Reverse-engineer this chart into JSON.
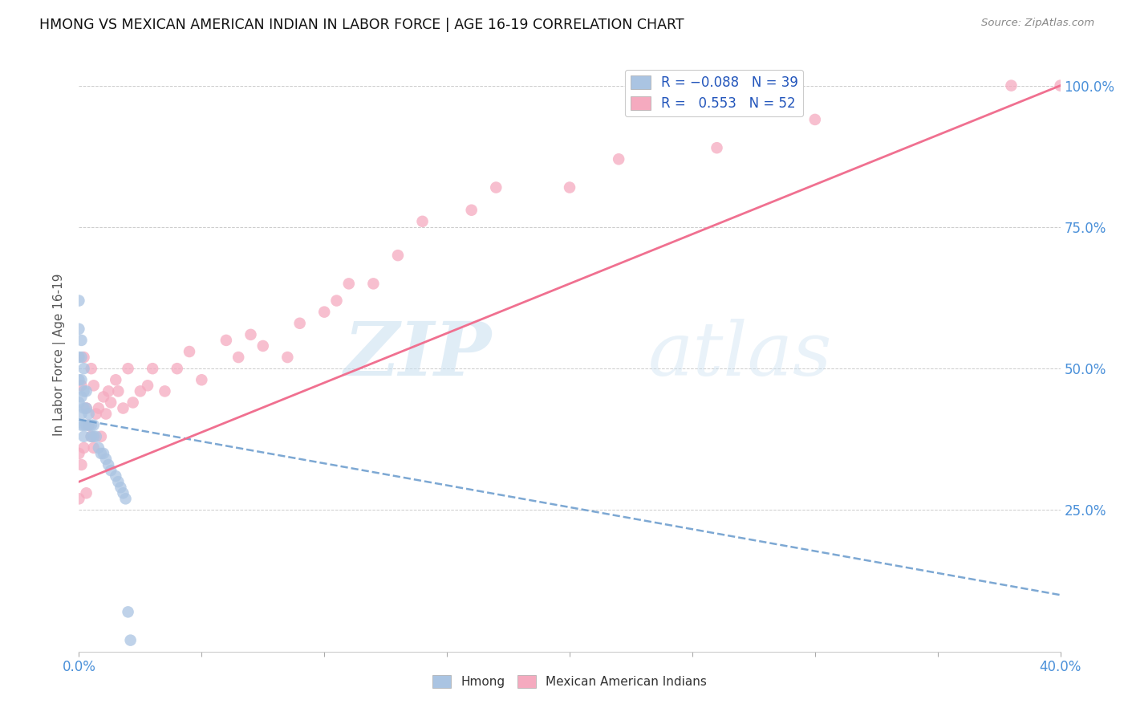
{
  "title": "HMONG VS MEXICAN AMERICAN INDIAN IN LABOR FORCE | AGE 16-19 CORRELATION CHART",
  "source": "Source: ZipAtlas.com",
  "ylabel_label": "In Labor Force | Age 16-19",
  "x_min": 0.0,
  "x_max": 0.4,
  "y_min": 0.0,
  "y_max": 1.05,
  "hmong_R": -0.088,
  "hmong_N": 39,
  "mexican_R": 0.553,
  "mexican_N": 52,
  "hmong_color": "#aac4e2",
  "mexican_color": "#f5aabf",
  "hmong_line_color": "#6699cc",
  "mexican_line_color": "#f07090",
  "watermark_zip": "ZIP",
  "watermark_atlas": "atlas",
  "hmong_x": [
    0.0,
    0.0,
    0.0,
    0.0,
    0.0,
    0.001,
    0.001,
    0.001,
    0.001,
    0.001,
    0.001,
    0.002,
    0.002,
    0.002,
    0.002,
    0.002,
    0.003,
    0.003,
    0.003,
    0.004,
    0.004,
    0.005,
    0.005,
    0.006,
    0.006,
    0.007,
    0.008,
    0.009,
    0.01,
    0.011,
    0.012,
    0.013,
    0.015,
    0.016,
    0.017,
    0.018,
    0.019,
    0.02,
    0.021
  ],
  "hmong_y": [
    0.62,
    0.57,
    0.52,
    0.48,
    0.44,
    0.55,
    0.52,
    0.48,
    0.45,
    0.42,
    0.4,
    0.5,
    0.46,
    0.43,
    0.4,
    0.38,
    0.46,
    0.43,
    0.4,
    0.42,
    0.4,
    0.4,
    0.38,
    0.4,
    0.38,
    0.38,
    0.36,
    0.35,
    0.35,
    0.34,
    0.33,
    0.32,
    0.31,
    0.3,
    0.29,
    0.28,
    0.27,
    0.07,
    0.02
  ],
  "mexican_x": [
    0.0,
    0.0,
    0.001,
    0.001,
    0.002,
    0.002,
    0.003,
    0.003,
    0.004,
    0.005,
    0.005,
    0.006,
    0.006,
    0.007,
    0.008,
    0.009,
    0.01,
    0.011,
    0.012,
    0.013,
    0.015,
    0.016,
    0.018,
    0.02,
    0.022,
    0.025,
    0.028,
    0.03,
    0.035,
    0.04,
    0.045,
    0.05,
    0.06,
    0.065,
    0.07,
    0.075,
    0.085,
    0.09,
    0.1,
    0.105,
    0.11,
    0.12,
    0.13,
    0.14,
    0.16,
    0.17,
    0.2,
    0.22,
    0.26,
    0.3,
    0.38,
    0.4
  ],
  "mexican_y": [
    0.35,
    0.27,
    0.47,
    0.33,
    0.52,
    0.36,
    0.43,
    0.28,
    0.4,
    0.5,
    0.38,
    0.47,
    0.36,
    0.42,
    0.43,
    0.38,
    0.45,
    0.42,
    0.46,
    0.44,
    0.48,
    0.46,
    0.43,
    0.5,
    0.44,
    0.46,
    0.47,
    0.5,
    0.46,
    0.5,
    0.53,
    0.48,
    0.55,
    0.52,
    0.56,
    0.54,
    0.52,
    0.58,
    0.6,
    0.62,
    0.65,
    0.65,
    0.7,
    0.76,
    0.78,
    0.82,
    0.82,
    0.87,
    0.89,
    0.94,
    1.0,
    1.0
  ],
  "hmong_line_x0": 0.0,
  "hmong_line_y0": 0.41,
  "hmong_line_x1": 0.4,
  "hmong_line_y1": 0.1,
  "mexican_line_x0": 0.0,
  "mexican_line_y0": 0.3,
  "mexican_line_x1": 0.4,
  "mexican_line_y1": 1.0
}
